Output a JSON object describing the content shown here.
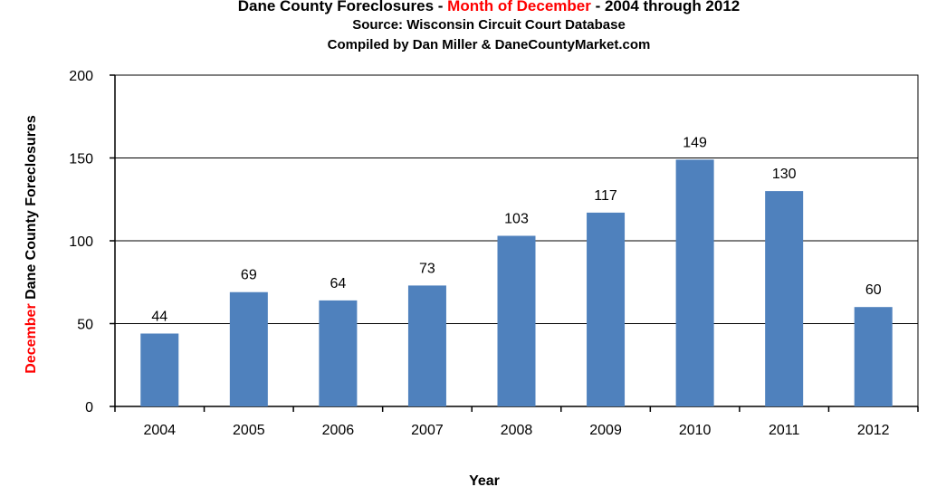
{
  "chart_data": {
    "type": "bar",
    "title": {
      "part1": "Dane County Foreclosures - ",
      "highlight": "Month of December",
      "part2": " - 2004 through 2012"
    },
    "subtitle1": "Source: Wisconsin Circuit Court Database",
    "subtitle2": "Compiled by Dan Miller & DaneCountyMarket.com",
    "xlabel": "Year",
    "ylabel": {
      "highlight": "December",
      "rest": " Dane County Foreclosures"
    },
    "categories": [
      "2004",
      "2005",
      "2006",
      "2007",
      "2008",
      "2009",
      "2010",
      "2011",
      "2012"
    ],
    "values": [
      44,
      69,
      64,
      73,
      103,
      117,
      149,
      130,
      60
    ],
    "ylim": [
      0,
      200
    ],
    "yticks": [
      0,
      50,
      100,
      150,
      200
    ],
    "grid": true,
    "legend": "none",
    "colors": {
      "bar": "#4f81bd",
      "highlight": "#ff0000"
    }
  }
}
